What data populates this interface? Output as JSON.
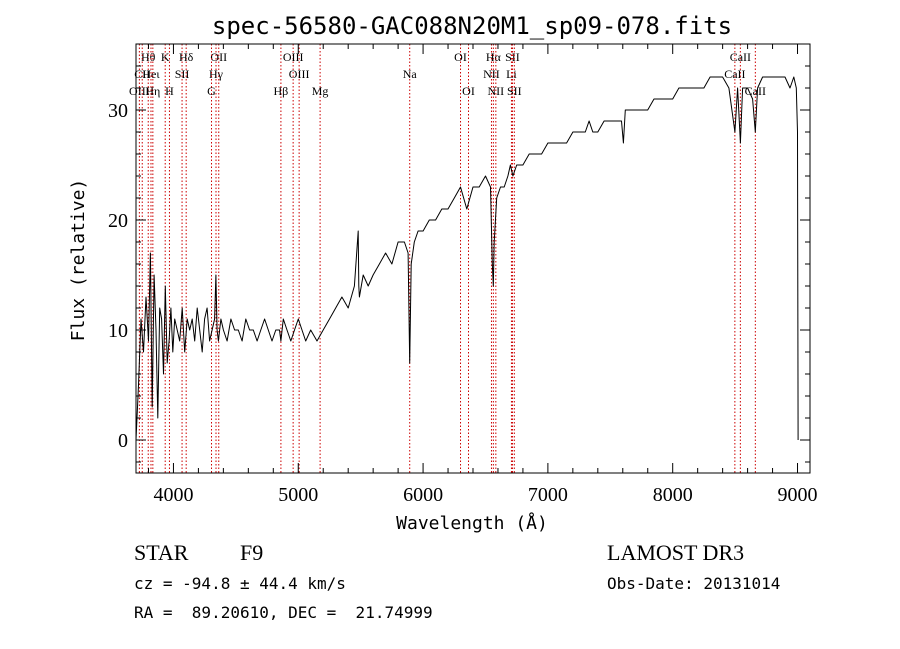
{
  "chart_data": {
    "type": "line",
    "title": "spec-56580-GAC088N20M1_sp09-078.fits",
    "xlabel": "Wavelength (Å)",
    "ylabel": "Flux (relative)",
    "xlim": [
      3700,
      9100
    ],
    "ylim": [
      -3,
      36
    ],
    "xticks": [
      4000,
      5000,
      6000,
      7000,
      8000,
      9000
    ],
    "yticks": [
      0,
      10,
      20,
      30
    ],
    "series": [
      {
        "name": "flux",
        "x": [
          3700,
          3720,
          3740,
          3760,
          3780,
          3800,
          3815,
          3830,
          3845,
          3860,
          3875,
          3890,
          3905,
          3920,
          3935,
          3950,
          3965,
          3980,
          3995,
          4010,
          4030,
          4050,
          4070,
          4090,
          4110,
          4130,
          4150,
          4170,
          4190,
          4210,
          4230,
          4250,
          4270,
          4290,
          4310,
          4330,
          4340,
          4350,
          4360,
          4380,
          4400,
          4430,
          4460,
          4490,
          4520,
          4550,
          4580,
          4610,
          4640,
          4670,
          4700,
          4730,
          4760,
          4790,
          4820,
          4850,
          4861,
          4880,
          4910,
          4940,
          4970,
          5000,
          5030,
          5060,
          5100,
          5150,
          5200,
          5250,
          5300,
          5350,
          5400,
          5450,
          5480,
          5485,
          5490,
          5520,
          5560,
          5600,
          5650,
          5700,
          5750,
          5800,
          5850,
          5880,
          5893,
          5905,
          5930,
          5960,
          6000,
          6050,
          6100,
          6150,
          6200,
          6250,
          6300,
          6350,
          6400,
          6450,
          6500,
          6540,
          6555,
          6563,
          6570,
          6590,
          6620,
          6650,
          6680,
          6700,
          6720,
          6750,
          6800,
          6850,
          6900,
          6950,
          7000,
          7050,
          7100,
          7150,
          7200,
          7250,
          7300,
          7330,
          7360,
          7400,
          7450,
          7500,
          7550,
          7590,
          7605,
          7620,
          7680,
          7750,
          7800,
          7850,
          7900,
          7950,
          8000,
          8050,
          8100,
          8150,
          8200,
          8250,
          8300,
          8350,
          8400,
          8450,
          8498,
          8520,
          8542,
          8560,
          8600,
          8640,
          8662,
          8680,
          8720,
          8760,
          8800,
          8850,
          8900,
          8940,
          8970,
          8990,
          9000,
          9005
        ],
        "y": [
          0,
          5,
          11,
          8,
          13,
          9,
          17,
          3,
          15,
          10,
          2,
          12,
          11,
          6,
          14,
          7,
          9,
          12,
          8,
          11,
          10,
          9,
          12,
          8,
          11,
          10,
          11,
          9,
          12,
          10,
          8,
          11,
          12,
          9,
          10,
          11,
          15,
          10,
          9,
          11,
          10,
          9,
          11,
          10,
          10,
          9,
          11,
          10,
          10,
          9,
          10,
          11,
          10,
          9,
          10,
          10,
          9,
          11,
          10,
          9,
          10,
          11,
          10,
          9,
          10,
          9,
          10,
          11,
          12,
          13,
          12,
          14,
          19,
          14,
          13,
          15,
          14,
          15,
          16,
          17,
          16,
          18,
          18,
          17,
          7,
          16,
          18,
          19,
          19,
          20,
          20,
          21,
          21,
          22,
          23,
          21,
          23,
          23,
          24,
          23,
          16,
          14,
          18,
          22,
          23,
          23,
          24,
          25,
          24,
          25,
          25,
          26,
          26,
          26,
          27,
          27,
          27,
          27,
          28,
          28,
          28,
          29,
          28,
          28,
          29,
          29,
          29,
          29,
          27,
          30,
          30,
          30,
          30,
          31,
          31,
          31,
          31,
          32,
          32,
          32,
          32,
          32,
          33,
          33,
          33,
          32,
          28,
          32,
          27,
          32,
          32,
          31,
          28,
          32,
          33,
          33,
          33,
          33,
          33,
          32,
          33,
          32,
          28,
          0
        ]
      }
    ],
    "spectral_lines": [
      {
        "label": "Hθ",
        "wave": 3798,
        "row": 0
      },
      {
        "label": "CII",
        "wave": 3750,
        "row": 1
      },
      {
        "label": "OIII",
        "wave": 3727,
        "row": 2
      },
      {
        "label": "Heι",
        "wave": 3820,
        "row": 1
      },
      {
        "label": "Hη",
        "wave": 3835,
        "row": 2
      },
      {
        "label": "K",
        "wave": 3934,
        "row": 0
      },
      {
        "label": "SII",
        "wave": 4069,
        "row": 1
      },
      {
        "label": "H",
        "wave": 3968,
        "row": 2
      },
      {
        "label": "Hδ",
        "wave": 4102,
        "row": 0
      },
      {
        "label": "OII",
        "wave": 4363,
        "row": 0
      },
      {
        "label": "Hγ",
        "wave": 4341,
        "row": 1
      },
      {
        "label": "G",
        "wave": 4305,
        "row": 2
      },
      {
        "label": "OIII",
        "wave": 4959,
        "row": 0
      },
      {
        "label": "OIII",
        "wave": 5007,
        "row": 1
      },
      {
        "label": "Hβ",
        "wave": 4861,
        "row": 2
      },
      {
        "label": "Mg",
        "wave": 5175,
        "row": 2
      },
      {
        "label": "Na",
        "wave": 5893,
        "row": 1
      },
      {
        "label": "OI",
        "wave": 6300,
        "row": 0
      },
      {
        "label": "OI",
        "wave": 6364,
        "row": 2
      },
      {
        "label": "Hα",
        "wave": 6563,
        "row": 0
      },
      {
        "label": "SII",
        "wave": 6716,
        "row": 0
      },
      {
        "label": "NII",
        "wave": 6548,
        "row": 1
      },
      {
        "label": "Li",
        "wave": 6708,
        "row": 1
      },
      {
        "label": "NII",
        "wave": 6583,
        "row": 2
      },
      {
        "label": "SII",
        "wave": 6731,
        "row": 2
      },
      {
        "label": "CaII",
        "wave": 8542,
        "row": 0
      },
      {
        "label": "CaII",
        "wave": 8498,
        "row": 1
      },
      {
        "label": "CaII",
        "wave": 8662,
        "row": 2
      }
    ]
  },
  "info": {
    "object_class": "STAR",
    "subclass": "F9",
    "survey": "LAMOST DR3",
    "redshift": "cz = -94.8 ± 44.4 km/s",
    "obs_date": "Obs-Date: 20131014",
    "coords": "RA =  89.20610, DEC =  21.74999"
  },
  "colors": {
    "spectrum": "#000000",
    "line_markers": "#cc0000",
    "background": "#ffffff"
  }
}
